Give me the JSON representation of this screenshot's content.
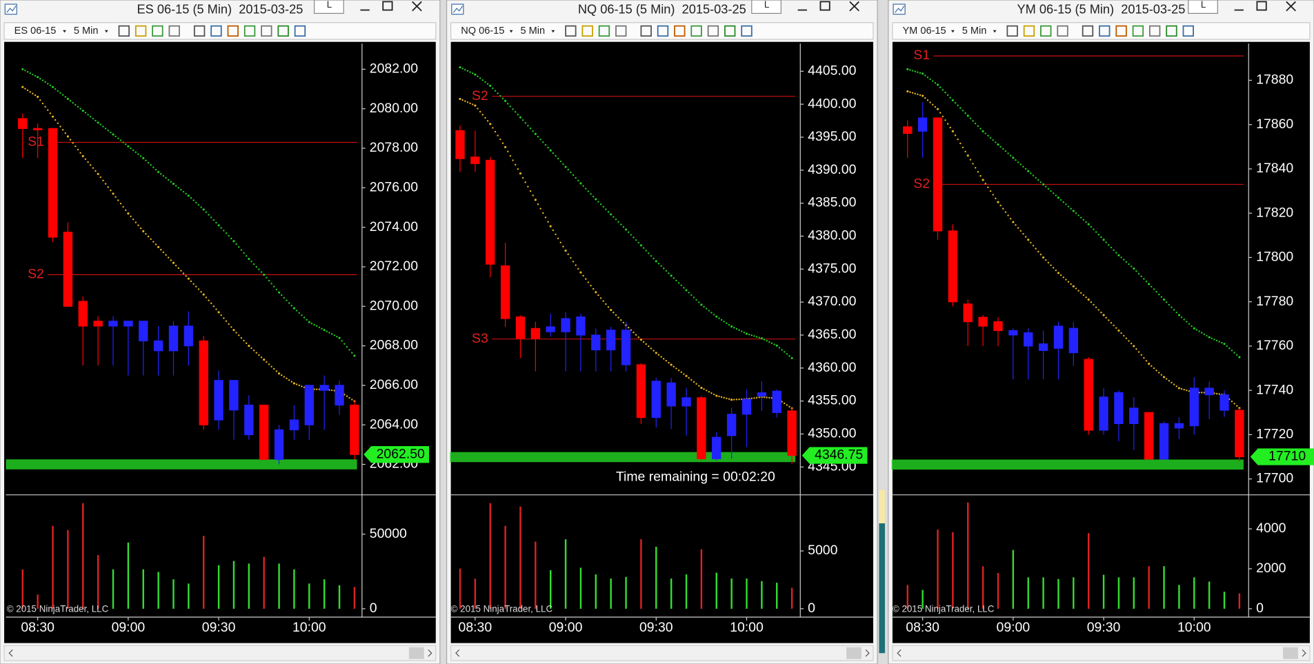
{
  "chart_data": [
    {
      "type": "candlestick",
      "window_title": "ES 06-15 (5 Min)  2015-03-25",
      "window_button": "L",
      "instrument": "ES 06-15",
      "interval": "5 Min",
      "copyright": "© 2015 NinjaTrader, LLC",
      "categories": [
        null,
        "08:30",
        null,
        null,
        null,
        null,
        null,
        "09:00",
        null,
        null,
        null,
        null,
        null,
        "09:30",
        null,
        null,
        null,
        null,
        null,
        "10:00",
        null,
        null,
        null
      ],
      "open": [
        2079.5,
        2079.0,
        2079.0,
        2073.75,
        2070.25,
        2069.25,
        2069.0,
        2069.0,
        2068.25,
        2067.75,
        2067.75,
        2068.0,
        2068.25,
        2064.25,
        2064.75,
        2063.5,
        2065.0,
        2062.25,
        2063.75,
        2064.0,
        2065.75,
        2065.0,
        2065.0
      ],
      "high": [
        2079.75,
        2079.25,
        2079.0,
        2074.25,
        2070.5,
        2069.5,
        2069.5,
        2069.25,
        2069.25,
        2069.0,
        2069.25,
        2069.75,
        2068.5,
        2066.75,
        2066.25,
        2065.5,
        2065.0,
        2064.0,
        2065.0,
        2066.0,
        2066.5,
        2066.25,
        2065.25
      ],
      "low": [
        2077.5,
        2077.5,
        2073.25,
        2070.0,
        2067.0,
        2067.0,
        2067.0,
        2066.5,
        2066.5,
        2066.5,
        2066.5,
        2067.0,
        2063.75,
        2063.75,
        2063.25,
        2063.25,
        2062.25,
        2062.0,
        2063.25,
        2063.25,
        2063.75,
        2064.5,
        2062.25
      ],
      "close": [
        2079.0,
        2079.0,
        2073.5,
        2070.0,
        2069.0,
        2069.0,
        2069.25,
        2069.25,
        2069.25,
        2068.25,
        2069.0,
        2069.0,
        2064.0,
        2066.25,
        2066.25,
        2065.0,
        2062.25,
        2063.75,
        2064.25,
        2066.0,
        2066.0,
        2066.0,
        2062.5
      ],
      "up_color": "#2323ff",
      "down_color": "#ff0000",
      "ylim": [
        2060.5,
        2083.3
      ],
      "yticks": [
        {
          "value": 2062,
          "label": "2062.00"
        },
        {
          "value": 2064,
          "label": "2064.00"
        },
        {
          "value": 2066,
          "label": "2066.00"
        },
        {
          "value": 2068,
          "label": "2068.00"
        },
        {
          "value": 2070,
          "label": "2070.00"
        },
        {
          "value": 2072,
          "label": "2072.00"
        },
        {
          "value": 2074,
          "label": "2074.00"
        },
        {
          "value": 2076,
          "label": "2076.00"
        },
        {
          "value": 2078,
          "label": "2078.00"
        },
        {
          "value": 2080,
          "label": "2080.00"
        },
        {
          "value": 2082,
          "label": "2082.00"
        }
      ],
      "ema_lines": [
        {
          "color": "#22cc22",
          "values": [
            2082.0,
            2081.6,
            2081.1,
            2080.5,
            2079.9,
            2079.3,
            2078.7,
            2078.1,
            2077.5,
            2076.8,
            2076.2,
            2075.6,
            2074.9,
            2074.1,
            2073.3,
            2072.4,
            2071.6,
            2070.7,
            2069.9,
            2069.2,
            2068.8,
            2068.4,
            2067.5
          ]
        },
        {
          "color": "#e6b422",
          "values": [
            2081.1,
            2080.6,
            2079.6,
            2078.6,
            2077.6,
            2076.7,
            2075.7,
            2074.7,
            2073.8,
            2073.0,
            2072.2,
            2071.4,
            2070.6,
            2069.7,
            2068.8,
            2068.0,
            2067.3,
            2066.6,
            2066.1,
            2065.8,
            2065.8,
            2065.7,
            2065.2
          ]
        }
      ],
      "levels": [
        {
          "name": "S1",
          "value": 2078.3
        },
        {
          "name": "S2",
          "value": 2071.6
        }
      ],
      "level_color": "#cc1111",
      "highlight_level": 2062.0,
      "highlight_color": "#22cc22",
      "last_price": 2062.5,
      "last_price_label": "2062.50",
      "volume": {
        "values": [
          26400,
          9500,
          55600,
          52800,
          70800,
          36000,
          26400,
          44400,
          26400,
          24700,
          19700,
          16900,
          48900,
          29200,
          32000,
          30300,
          34800,
          30300,
          26400,
          16900,
          19700,
          15700,
          14600
        ],
        "ylim": [
          0,
          75800
        ],
        "yticks": [
          0,
          50000
        ],
        "up_color": "#33dd33",
        "down_color": "#dd2222"
      }
    },
    {
      "type": "candlestick",
      "window_title": "NQ 06-15 (5 Min)  2015-03-25",
      "window_button": "L",
      "instrument": "NQ 06-15",
      "interval": "5 Min",
      "copyright": "© 2015 NinjaTrader, LLC",
      "categories": [
        null,
        "08:30",
        null,
        null,
        null,
        null,
        null,
        "09:00",
        null,
        null,
        null,
        null,
        null,
        "09:30",
        null,
        null,
        null,
        null,
        null,
        "10:00",
        null,
        null,
        null
      ],
      "open": [
        4396.0,
        4392.0,
        4391.5,
        4375.5,
        4367.75,
        4366.0,
        4365.5,
        4365.5,
        4365.0,
        4362.75,
        4362.75,
        4360.5,
        4360.5,
        4352.5,
        4354.25,
        4354.25,
        4355.5,
        4346.25,
        4349.75,
        4353.0,
        4355.75,
        4353.25,
        4353.5
      ],
      "high": [
        4396.75,
        4396.0,
        4392.0,
        4379.0,
        4368.0,
        4367.0,
        4368.25,
        4368.5,
        4368.25,
        4366.0,
        4366.25,
        4367.0,
        4360.75,
        4358.5,
        4358.5,
        4357.0,
        4355.75,
        4350.25,
        4354.0,
        4356.75,
        4358.0,
        4356.75,
        4354.0
      ],
      "low": [
        4389.75,
        4389.75,
        4373.75,
        4366.25,
        4361.5,
        4359.5,
        4364.75,
        4359.5,
        4359.5,
        4359.5,
        4359.5,
        4359.5,
        4351.5,
        4351.0,
        4350.75,
        4349.75,
        4346.0,
        4346.0,
        4346.25,
        4348.0,
        4353.5,
        4352.5,
        4345.5
      ],
      "close": [
        4391.75,
        4391.0,
        4375.75,
        4367.5,
        4364.5,
        4364.5,
        4366.25,
        4367.5,
        4367.75,
        4365.0,
        4365.75,
        4365.75,
        4352.5,
        4358.0,
        4357.75,
        4355.5,
        4346.25,
        4349.5,
        4353.0,
        4355.25,
        4356.25,
        4356.5,
        4346.75
      ],
      "up_color": "#2323ff",
      "down_color": "#ff0000",
      "ylim": [
        4340.9,
        4409.2
      ],
      "yticks": [
        {
          "value": 4345,
          "label": "4345.00"
        },
        {
          "value": 4350,
          "label": "4350.00"
        },
        {
          "value": 4355,
          "label": "4355.00"
        },
        {
          "value": 4360,
          "label": "4360.00"
        },
        {
          "value": 4365,
          "label": "4365.00"
        },
        {
          "value": 4370,
          "label": "4370.00"
        },
        {
          "value": 4375,
          "label": "4375.00"
        },
        {
          "value": 4380,
          "label": "4380.00"
        },
        {
          "value": 4385,
          "label": "4385.00"
        },
        {
          "value": 4390,
          "label": "4390.00"
        },
        {
          "value": 4395,
          "label": "4395.00"
        },
        {
          "value": 4400,
          "label": "4400.00"
        },
        {
          "value": 4405,
          "label": "4405.00"
        }
      ],
      "ema_lines": [
        {
          "color": "#22cc22",
          "values": [
            4405.6,
            4404.5,
            4402.8,
            4400.5,
            4398.0,
            4395.5,
            4393.0,
            4390.5,
            4388.0,
            4385.6,
            4383.3,
            4381.0,
            4378.6,
            4376.2,
            4374.0,
            4371.8,
            4369.6,
            4367.8,
            4366.3,
            4365.2,
            4364.5,
            4363.4,
            4361.5
          ]
        },
        {
          "color": "#e6b422",
          "values": [
            4400.8,
            4399.8,
            4397.0,
            4393.5,
            4389.5,
            4385.5,
            4381.5,
            4377.8,
            4374.5,
            4371.5,
            4368.8,
            4366.5,
            4364.3,
            4362.3,
            4360.5,
            4358.8,
            4357.0,
            4355.8,
            4355.2,
            4355.3,
            4355.6,
            4355.4,
            4353.9
          ]
        }
      ],
      "levels": [
        {
          "name": "S2",
          "value": 4401.2
        },
        {
          "name": "S3",
          "value": 4364.4
        }
      ],
      "level_color": "#cc1111",
      "highlight_level": 4346.5,
      "highlight_color": "#22cc22",
      "last_price": 4346.75,
      "last_price_label": "4346.75",
      "annotation": "Time remaining = 00:02:20",
      "volume": {
        "values": [
          3480,
          2600,
          9130,
          7170,
          8840,
          5800,
          3330,
          6010,
          3550,
          2970,
          2610,
          2750,
          6010,
          5360,
          2610,
          2970,
          5140,
          3120,
          2610,
          2610,
          2390,
          2250,
          1810
        ],
        "ylim": [
          0,
          9780
        ],
        "yticks": [
          0,
          5000
        ],
        "up_color": "#33dd33",
        "down_color": "#dd2222"
      }
    },
    {
      "type": "candlestick",
      "window_title": "YM 06-15 (5 Min)  2015-03-25",
      "window_button": "L",
      "instrument": "YM 06-15",
      "interval": "5 Min",
      "copyright": "© 2015 NinjaTrader, LLC",
      "categories": [
        null,
        "08:30",
        null,
        null,
        null,
        null,
        null,
        "09:00",
        null,
        null,
        null,
        null,
        null,
        "09:30",
        null,
        null,
        null,
        null,
        null,
        "10:00",
        null,
        null,
        null
      ],
      "open": [
        17859,
        17857,
        17863,
        17812,
        17779,
        17773,
        17771,
        17765,
        17760,
        17758,
        17759,
        17757,
        17754,
        17722,
        17725,
        17725,
        17730,
        17709,
        17723,
        17724,
        17738,
        17731,
        17731
      ],
      "high": [
        17862,
        17870,
        17863,
        17815,
        17781,
        17774,
        17773,
        17768,
        17768,
        17767,
        17771,
        17771,
        17755,
        17741,
        17740,
        17737,
        17730,
        17726,
        17728,
        17746,
        17744,
        17740,
        17732
      ],
      "low": [
        17845,
        17845,
        17808,
        17778,
        17760,
        17760,
        17760,
        17745,
        17745,
        17745,
        17745,
        17751,
        17720,
        17720,
        17717,
        17713,
        17709,
        17709,
        17718,
        17720,
        17727,
        17728,
        17708
      ],
      "close": [
        17856,
        17863,
        17812,
        17780,
        17771,
        17769,
        17767,
        17767,
        17766,
        17761,
        17769,
        17768,
        17722,
        17737,
        17739,
        17732,
        17709,
        17725,
        17725,
        17741,
        17741,
        17738,
        17710
      ],
      "up_color": "#2323ff",
      "down_color": "#ff0000",
      "ylim": [
        17693.2,
        17896.6
      ],
      "yticks": [
        17700,
        17720,
        17740,
        17760,
        17780,
        17800,
        17820,
        17840,
        17860,
        17880
      ],
      "ema_lines": [
        {
          "color": "#22cc22",
          "values": [
            17885,
            17883,
            17878,
            17871,
            17864,
            17857,
            17851,
            17845,
            17839,
            17833,
            17827,
            17821,
            17815,
            17808,
            17801,
            17795,
            17788,
            17781,
            17774,
            17768,
            17764,
            17761,
            17755
          ]
        },
        {
          "color": "#e6b422",
          "values": [
            17875,
            17873,
            17867,
            17857,
            17846,
            17835,
            17825,
            17816,
            17808,
            17800,
            17793,
            17787,
            17781,
            17774,
            17767,
            17760,
            17752,
            17746,
            17741,
            17739,
            17739,
            17738,
            17732
          ]
        }
      ],
      "levels": [
        {
          "name": "S1",
          "value": 17891
        },
        {
          "name": "S2",
          "value": 17833
        }
      ],
      "level_color": "#cc1111",
      "highlight_level": 17706.5,
      "highlight_color": "#22cc22",
      "last_price": 17710,
      "volume": {
        "values": [
          1190,
          940,
          3960,
          3830,
          5320,
          2130,
          1790,
          2940,
          1570,
          1570,
          1490,
          1570,
          3790,
          1700,
          1570,
          1570,
          2130,
          2130,
          1190,
          1570,
          1360,
          850,
          770
        ],
        "ylim": [
          0,
          5660
        ],
        "yticks": [
          0,
          2000,
          4000
        ],
        "up_color": "#33dd33",
        "down_color": "#dd2222"
      }
    }
  ]
}
